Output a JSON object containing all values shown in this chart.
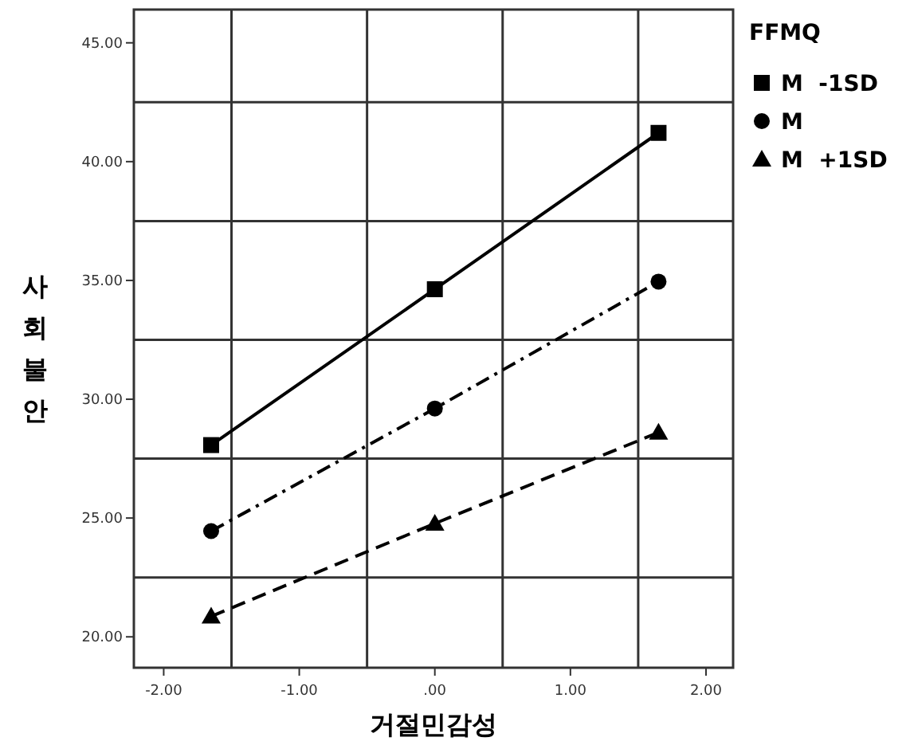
{
  "chart_data": {
    "type": "line",
    "xlabel": "거절민감성",
    "ylabel": "사회불안",
    "legend_title": "FFMQ",
    "legend": "right",
    "grid": true,
    "x": [
      -1.65,
      0,
      1.65
    ],
    "xlim": [
      -2.22,
      2.2
    ],
    "xticks": [
      {
        "value": -2,
        "label": "-2.00"
      },
      {
        "value": -1.5,
        "label": null
      },
      {
        "value": -1,
        "label": "-1.00"
      },
      {
        "value": -0.5,
        "label": null
      },
      {
        "value": 0,
        "label": ".00"
      },
      {
        "value": 0.5,
        "label": null
      },
      {
        "value": 1,
        "label": "1.00"
      },
      {
        "value": 1.5,
        "label": null
      },
      {
        "value": 2,
        "label": "2.00"
      }
    ],
    "ylim": [
      18.7,
      46.4
    ],
    "yticks": [
      {
        "value": 20,
        "label": "20.00"
      },
      {
        "value": 22.5,
        "label": null
      },
      {
        "value": 25,
        "label": "25.00"
      },
      {
        "value": 27.5,
        "label": null
      },
      {
        "value": 30,
        "label": "30.00"
      },
      {
        "value": 32.5,
        "label": null
      },
      {
        "value": 35,
        "label": "35.00"
      },
      {
        "value": 37.5,
        "label": null
      },
      {
        "value": 40,
        "label": "40.00"
      },
      {
        "value": 42.5,
        "label": null
      },
      {
        "value": 45,
        "label": "45.00"
      }
    ],
    "series": [
      {
        "name": "M  -1SD",
        "color": "#000000",
        "marker": "square",
        "line_style": "solid",
        "values": [
          28.07,
          34.63,
          41.21
        ]
      },
      {
        "name": "M",
        "color": "#000000",
        "marker": "circle",
        "line_style": "dashdot",
        "values": [
          24.45,
          29.61,
          34.95
        ]
      },
      {
        "name": "M  +1SD",
        "color": "#000000",
        "marker": "triangle",
        "line_style": "dashed",
        "values": [
          20.86,
          24.77,
          28.6
        ]
      }
    ]
  }
}
